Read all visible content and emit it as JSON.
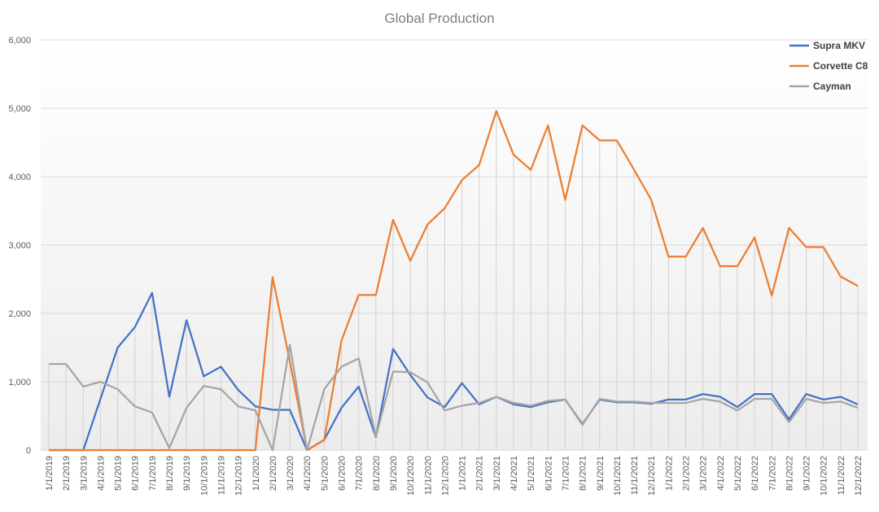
{
  "chart_data": {
    "type": "line",
    "title": "Global Production",
    "categories": [
      "1/1/2019",
      "2/1/2019",
      "3/1/2019",
      "4/1/2019",
      "5/1/2019",
      "6/1/2019",
      "7/1/2019",
      "8/1/2019",
      "9/1/2019",
      "10/1/2019",
      "11/1/2019",
      "12/1/2019",
      "1/1/2020",
      "2/1/2020",
      "3/1/2020",
      "4/1/2020",
      "5/1/2020",
      "6/1/2020",
      "7/1/2020",
      "8/1/2020",
      "9/1/2020",
      "10/1/2020",
      "11/1/2020",
      "12/1/2020",
      "1/1/2021",
      "2/1/2021",
      "3/1/2021",
      "4/1/2021",
      "5/1/2021",
      "6/1/2021",
      "7/1/2021",
      "8/1/2021",
      "9/1/2021",
      "10/1/2021",
      "11/1/2021",
      "12/1/2021",
      "1/1/2022",
      "2/1/2022",
      "3/1/2022",
      "4/1/2022",
      "5/1/2022",
      "6/1/2022",
      "7/1/2022",
      "8/1/2022",
      "9/1/2022",
      "10/1/2022",
      "11/1/2022",
      "12/1/2022"
    ],
    "series": [
      {
        "name": "Supra MKV",
        "color": "#4472c4",
        "values": [
          0,
          0,
          0,
          750,
          1500,
          1800,
          2300,
          780,
          1900,
          1080,
          1220,
          880,
          640,
          590,
          590,
          0,
          150,
          620,
          930,
          190,
          1480,
          1100,
          770,
          630,
          980,
          670,
          780,
          670,
          630,
          700,
          740,
          380,
          740,
          700,
          700,
          680,
          740,
          740,
          820,
          780,
          630,
          820,
          820,
          450,
          820,
          740,
          780,
          670
        ]
      },
      {
        "name": "Corvette C8",
        "color": "#ed7d31",
        "values": [
          0,
          0,
          0,
          0,
          0,
          0,
          0,
          0,
          0,
          0,
          0,
          0,
          0,
          2530,
          1300,
          0,
          150,
          1600,
          2270,
          2270,
          3370,
          2770,
          3300,
          3540,
          3950,
          4170,
          4960,
          4320,
          4100,
          4750,
          3660,
          4750,
          4530,
          4530,
          4100,
          3660,
          2830,
          2830,
          3250,
          2690,
          2690,
          3110,
          2260,
          3250,
          2970,
          2970,
          2540,
          2400
        ]
      },
      {
        "name": "Cayman",
        "color": "#a5a5a5",
        "values": [
          1260,
          1260,
          930,
          1000,
          890,
          640,
          550,
          30,
          620,
          940,
          890,
          640,
          580,
          0,
          1540,
          0,
          890,
          1220,
          1340,
          200,
          1150,
          1140,
          990,
          580,
          650,
          690,
          780,
          690,
          650,
          720,
          740,
          370,
          750,
          710,
          710,
          690,
          690,
          690,
          750,
          710,
          580,
          750,
          750,
          410,
          750,
          690,
          710,
          620
        ]
      }
    ],
    "ylim": [
      0,
      6000
    ],
    "yticks": [
      0,
      {
        "value": 1000,
        "label": "1,000"
      },
      {
        "value": 2000,
        "label": "2,000"
      },
      {
        "value": 3000,
        "label": "3,000"
      },
      {
        "value": 4000,
        "label": "4,000"
      },
      {
        "value": 5000,
        "label": "5,000"
      },
      {
        "value": 6000,
        "label": "6,000"
      }
    ],
    "grid": true,
    "legend": "top-right"
  }
}
